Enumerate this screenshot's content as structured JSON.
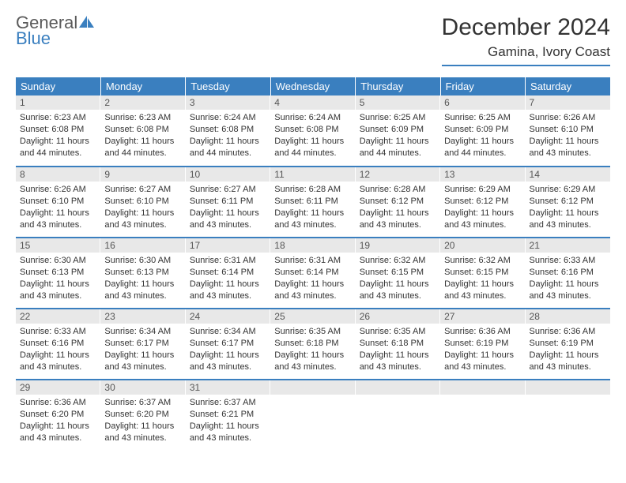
{
  "logo": {
    "top": "General",
    "bottom": "Blue"
  },
  "title": "December 2024",
  "location": "Gamina, Ivory Coast",
  "header_bg": "#3a7fbf",
  "header_fg": "#ffffff",
  "daynum_bg": "#e8e8e8",
  "border_color": "#3a7fbf",
  "weekdays": [
    "Sunday",
    "Monday",
    "Tuesday",
    "Wednesday",
    "Thursday",
    "Friday",
    "Saturday"
  ],
  "days": [
    {
      "num": "1",
      "sunrise": "Sunrise: 6:23 AM",
      "sunset": "Sunset: 6:08 PM",
      "day1": "Daylight: 11 hours",
      "day2": "and 44 minutes."
    },
    {
      "num": "2",
      "sunrise": "Sunrise: 6:23 AM",
      "sunset": "Sunset: 6:08 PM",
      "day1": "Daylight: 11 hours",
      "day2": "and 44 minutes."
    },
    {
      "num": "3",
      "sunrise": "Sunrise: 6:24 AM",
      "sunset": "Sunset: 6:08 PM",
      "day1": "Daylight: 11 hours",
      "day2": "and 44 minutes."
    },
    {
      "num": "4",
      "sunrise": "Sunrise: 6:24 AM",
      "sunset": "Sunset: 6:08 PM",
      "day1": "Daylight: 11 hours",
      "day2": "and 44 minutes."
    },
    {
      "num": "5",
      "sunrise": "Sunrise: 6:25 AM",
      "sunset": "Sunset: 6:09 PM",
      "day1": "Daylight: 11 hours",
      "day2": "and 44 minutes."
    },
    {
      "num": "6",
      "sunrise": "Sunrise: 6:25 AM",
      "sunset": "Sunset: 6:09 PM",
      "day1": "Daylight: 11 hours",
      "day2": "and 44 minutes."
    },
    {
      "num": "7",
      "sunrise": "Sunrise: 6:26 AM",
      "sunset": "Sunset: 6:10 PM",
      "day1": "Daylight: 11 hours",
      "day2": "and 43 minutes."
    },
    {
      "num": "8",
      "sunrise": "Sunrise: 6:26 AM",
      "sunset": "Sunset: 6:10 PM",
      "day1": "Daylight: 11 hours",
      "day2": "and 43 minutes."
    },
    {
      "num": "9",
      "sunrise": "Sunrise: 6:27 AM",
      "sunset": "Sunset: 6:10 PM",
      "day1": "Daylight: 11 hours",
      "day2": "and 43 minutes."
    },
    {
      "num": "10",
      "sunrise": "Sunrise: 6:27 AM",
      "sunset": "Sunset: 6:11 PM",
      "day1": "Daylight: 11 hours",
      "day2": "and 43 minutes."
    },
    {
      "num": "11",
      "sunrise": "Sunrise: 6:28 AM",
      "sunset": "Sunset: 6:11 PM",
      "day1": "Daylight: 11 hours",
      "day2": "and 43 minutes."
    },
    {
      "num": "12",
      "sunrise": "Sunrise: 6:28 AM",
      "sunset": "Sunset: 6:12 PM",
      "day1": "Daylight: 11 hours",
      "day2": "and 43 minutes."
    },
    {
      "num": "13",
      "sunrise": "Sunrise: 6:29 AM",
      "sunset": "Sunset: 6:12 PM",
      "day1": "Daylight: 11 hours",
      "day2": "and 43 minutes."
    },
    {
      "num": "14",
      "sunrise": "Sunrise: 6:29 AM",
      "sunset": "Sunset: 6:12 PM",
      "day1": "Daylight: 11 hours",
      "day2": "and 43 minutes."
    },
    {
      "num": "15",
      "sunrise": "Sunrise: 6:30 AM",
      "sunset": "Sunset: 6:13 PM",
      "day1": "Daylight: 11 hours",
      "day2": "and 43 minutes."
    },
    {
      "num": "16",
      "sunrise": "Sunrise: 6:30 AM",
      "sunset": "Sunset: 6:13 PM",
      "day1": "Daylight: 11 hours",
      "day2": "and 43 minutes."
    },
    {
      "num": "17",
      "sunrise": "Sunrise: 6:31 AM",
      "sunset": "Sunset: 6:14 PM",
      "day1": "Daylight: 11 hours",
      "day2": "and 43 minutes."
    },
    {
      "num": "18",
      "sunrise": "Sunrise: 6:31 AM",
      "sunset": "Sunset: 6:14 PM",
      "day1": "Daylight: 11 hours",
      "day2": "and 43 minutes."
    },
    {
      "num": "19",
      "sunrise": "Sunrise: 6:32 AM",
      "sunset": "Sunset: 6:15 PM",
      "day1": "Daylight: 11 hours",
      "day2": "and 43 minutes."
    },
    {
      "num": "20",
      "sunrise": "Sunrise: 6:32 AM",
      "sunset": "Sunset: 6:15 PM",
      "day1": "Daylight: 11 hours",
      "day2": "and 43 minutes."
    },
    {
      "num": "21",
      "sunrise": "Sunrise: 6:33 AM",
      "sunset": "Sunset: 6:16 PM",
      "day1": "Daylight: 11 hours",
      "day2": "and 43 minutes."
    },
    {
      "num": "22",
      "sunrise": "Sunrise: 6:33 AM",
      "sunset": "Sunset: 6:16 PM",
      "day1": "Daylight: 11 hours",
      "day2": "and 43 minutes."
    },
    {
      "num": "23",
      "sunrise": "Sunrise: 6:34 AM",
      "sunset": "Sunset: 6:17 PM",
      "day1": "Daylight: 11 hours",
      "day2": "and 43 minutes."
    },
    {
      "num": "24",
      "sunrise": "Sunrise: 6:34 AM",
      "sunset": "Sunset: 6:17 PM",
      "day1": "Daylight: 11 hours",
      "day2": "and 43 minutes."
    },
    {
      "num": "25",
      "sunrise": "Sunrise: 6:35 AM",
      "sunset": "Sunset: 6:18 PM",
      "day1": "Daylight: 11 hours",
      "day2": "and 43 minutes."
    },
    {
      "num": "26",
      "sunrise": "Sunrise: 6:35 AM",
      "sunset": "Sunset: 6:18 PM",
      "day1": "Daylight: 11 hours",
      "day2": "and 43 minutes."
    },
    {
      "num": "27",
      "sunrise": "Sunrise: 6:36 AM",
      "sunset": "Sunset: 6:19 PM",
      "day1": "Daylight: 11 hours",
      "day2": "and 43 minutes."
    },
    {
      "num": "28",
      "sunrise": "Sunrise: 6:36 AM",
      "sunset": "Sunset: 6:19 PM",
      "day1": "Daylight: 11 hours",
      "day2": "and 43 minutes."
    },
    {
      "num": "29",
      "sunrise": "Sunrise: 6:36 AM",
      "sunset": "Sunset: 6:20 PM",
      "day1": "Daylight: 11 hours",
      "day2": "and 43 minutes."
    },
    {
      "num": "30",
      "sunrise": "Sunrise: 6:37 AM",
      "sunset": "Sunset: 6:20 PM",
      "day1": "Daylight: 11 hours",
      "day2": "and 43 minutes."
    },
    {
      "num": "31",
      "sunrise": "Sunrise: 6:37 AM",
      "sunset": "Sunset: 6:21 PM",
      "day1": "Daylight: 11 hours",
      "day2": "and 43 minutes."
    }
  ]
}
